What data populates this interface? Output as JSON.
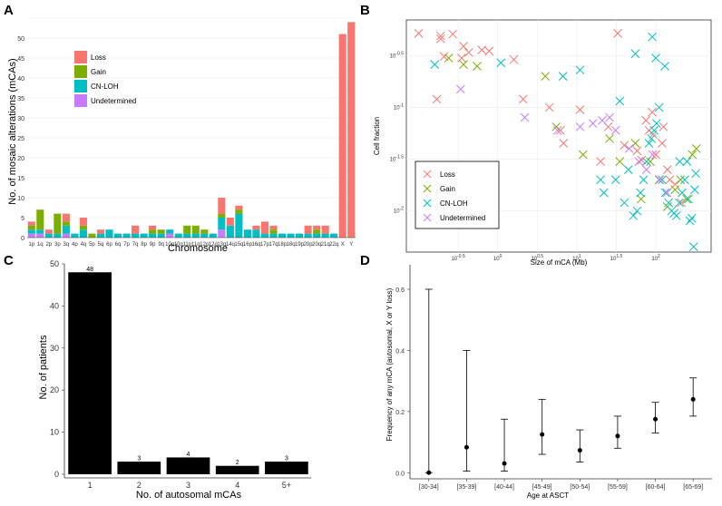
{
  "panels": {
    "A": "A",
    "B": "B",
    "C": "C",
    "D": "D"
  },
  "colors": {
    "loss": "#F8766D",
    "gain": "#7CAE00",
    "cnloh": "#00BFC4",
    "undetermined": "#C77CFF"
  },
  "chart_data": [
    {
      "id": "A",
      "type": "bar",
      "stacked": true,
      "title": "",
      "xlabel": "Chromosome",
      "ylabel": "No. of mosaic alterations (mCAs)",
      "ylim": [
        0,
        55
      ],
      "yticks": [
        "0",
        "5",
        "10",
        "15",
        "20",
        "25",
        "30",
        "35",
        "40",
        "45",
        "50"
      ],
      "categories": [
        "1p",
        "1q",
        "2p",
        "3p",
        "3q",
        "4p",
        "4q",
        "5p",
        "5q",
        "6p",
        "6q",
        "7p",
        "7q",
        "8p",
        "9p",
        "9q",
        "10p",
        "10q",
        "11p",
        "11q",
        "12p",
        "12q",
        "13q",
        "14q",
        "15q",
        "16p",
        "16q",
        "17p",
        "17q",
        "18p",
        "18q",
        "19p",
        "20p",
        "20q",
        "21q",
        "22q",
        "X",
        "Y"
      ],
      "legend": {
        "placement": "top-left",
        "entries": [
          "Loss",
          "Gain",
          "CN-LOH",
          "Undetermined"
        ]
      },
      "series": [
        {
          "name": "Undetermined",
          "color": "#C77CFF",
          "values": [
            1,
            1,
            0,
            0,
            1,
            0,
            0,
            0,
            0,
            0,
            0,
            0,
            0,
            0,
            0,
            0,
            1,
            0,
            0,
            0,
            0,
            0,
            2,
            0,
            0,
            0,
            0,
            0,
            0,
            0,
            0,
            0,
            0,
            0,
            0,
            0,
            0,
            0
          ]
        },
        {
          "name": "CN-LOH",
          "color": "#00BFC4",
          "values": [
            1,
            1,
            1,
            1,
            2,
            1,
            2,
            0,
            1,
            2,
            1,
            1,
            1,
            1,
            1,
            1,
            1,
            1,
            1,
            1,
            1,
            1,
            3,
            3,
            6,
            2,
            2,
            1,
            1,
            1,
            1,
            1,
            1,
            1,
            1,
            1,
            0,
            0
          ]
        },
        {
          "name": "Gain",
          "color": "#7CAE00",
          "values": [
            1,
            5,
            0,
            5,
            1,
            0,
            1,
            1,
            0,
            0,
            0,
            0,
            0,
            0,
            1,
            1,
            0,
            0,
            2,
            2,
            1,
            0,
            1,
            0,
            1,
            0,
            0,
            0,
            1,
            0,
            0,
            0,
            0,
            1,
            0,
            0,
            0,
            0
          ]
        },
        {
          "name": "Loss",
          "color": "#F8766D",
          "values": [
            1,
            0,
            1,
            0,
            2,
            0,
            2,
            0,
            1,
            0,
            0,
            0,
            2,
            0,
            1,
            0,
            0,
            0,
            0,
            0,
            0,
            0,
            4,
            2,
            1,
            0,
            1,
            3,
            1,
            0,
            0,
            0,
            2,
            1,
            2,
            0,
            51,
            54
          ]
        }
      ]
    },
    {
      "id": "B",
      "type": "scatter",
      "title": "",
      "xlabel": "Size of mCA (Mb)",
      "ylabel": "Cell fraction",
      "xscale": "log10",
      "yscale": "log10",
      "xlim": [
        0.07,
        500
      ],
      "ylim": [
        0.004,
        0.7
      ],
      "xticks": [
        "10^-0.5",
        "10^0",
        "10^0.5",
        "10^1",
        "10^1.5",
        "10^2"
      ],
      "yticks": [
        "10^-0.5",
        "10^-1",
        "10^-1.5",
        "10^-2"
      ],
      "legend": {
        "placement": "bottom-left",
        "entries": [
          "Loss",
          "Gain",
          "CN-LOH",
          "Undetermined"
        ]
      },
      "series": [
        {
          "name": "Loss",
          "color": "#F8766D",
          "points": [
            [
              0.1,
              0.52
            ],
            [
              0.19,
              0.49
            ],
            [
              0.19,
              0.46
            ],
            [
              0.27,
              0.51
            ],
            [
              0.37,
              0.39
            ],
            [
              0.43,
              0.34
            ],
            [
              0.63,
              0.36
            ],
            [
              0.78,
              0.35
            ],
            [
              0.21,
              0.31
            ],
            [
              0.35,
              0.3
            ],
            [
              0.17,
              0.12
            ],
            [
              1.6,
              0.29
            ],
            [
              2.1,
              0.12
            ],
            [
              4.5,
              0.1
            ],
            [
              6.2,
              0.06
            ],
            [
              6.8,
              0.045
            ],
            [
              11,
              0.095
            ],
            [
              20,
              0.03
            ],
            [
              25,
              0.065
            ],
            [
              33,
              0.52
            ],
            [
              40,
              0.043
            ],
            [
              58,
              0.038
            ],
            [
              66,
              0.031
            ],
            [
              82,
              0.06
            ],
            [
              92,
              0.055
            ],
            [
              100,
              0.035
            ],
            [
              120,
              0.045
            ],
            [
              140,
              0.025
            ],
            [
              150,
              0.02
            ],
            [
              175,
              0.018
            ],
            [
              210,
              0.012
            ],
            [
              90,
              0.09
            ],
            [
              125,
              0.065
            ],
            [
              75,
              0.075
            ]
          ]
        },
        {
          "name": "Gain",
          "color": "#7CAE00",
          "points": [
            [
              0.24,
              0.3
            ],
            [
              0.37,
              0.26
            ],
            [
              0.55,
              0.25
            ],
            [
              4,
              0.2
            ],
            [
              5.5,
              0.065
            ],
            [
              12,
              0.035
            ],
            [
              26,
              0.05
            ],
            [
              35,
              0.03
            ],
            [
              55,
              0.045
            ],
            [
              65,
              0.013
            ],
            [
              85,
              0.03
            ],
            [
              110,
              0.02
            ],
            [
              140,
              0.011
            ],
            [
              175,
              0.016
            ],
            [
              205,
              0.02
            ],
            [
              245,
              0.013
            ],
            [
              290,
              0.035
            ],
            [
              325,
              0.04
            ]
          ]
        },
        {
          "name": "CN-LOH",
          "color": "#00BFC4",
          "points": [
            [
              0.16,
              0.26
            ],
            [
              1.1,
              0.27
            ],
            [
              6.7,
              0.2
            ],
            [
              11,
              0.23
            ],
            [
              20,
              0.02
            ],
            [
              22,
              0.015
            ],
            [
              31,
              0.02
            ],
            [
              40,
              0.012
            ],
            [
              45,
              0.025
            ],
            [
              52,
              0.009
            ],
            [
              58,
              0.01
            ],
            [
              64,
              0.015
            ],
            [
              70,
              0.02
            ],
            [
              76,
              0.03
            ],
            [
              82,
              0.045
            ],
            [
              88,
              0.05
            ],
            [
              95,
              0.06
            ],
            [
              102,
              0.07
            ],
            [
              110,
              0.1
            ],
            [
              120,
              0.02
            ],
            [
              132,
              0.015
            ],
            [
              145,
              0.012
            ],
            [
              158,
              0.01
            ],
            [
              170,
              0.0095
            ],
            [
              182,
              0.009
            ],
            [
              198,
              0.012
            ],
            [
              215,
              0.015
            ],
            [
              232,
              0.02
            ],
            [
              248,
              0.03
            ],
            [
              258,
              0.013
            ],
            [
              270,
              0.008
            ],
            [
              285,
              0.0085
            ],
            [
              300,
              0.0045
            ],
            [
              310,
              0.016
            ],
            [
              320,
              0.023
            ],
            [
              200,
              0.03
            ],
            [
              35,
              0.115
            ],
            [
              55,
              0.33
            ],
            [
              90,
              0.48
            ],
            [
              100,
              0.3
            ],
            [
              130,
              0.25
            ]
          ]
        },
        {
          "name": "Undetermined",
          "color": "#C77CFF",
          "points": [
            [
              0.34,
              0.15
            ],
            [
              2.2,
              0.08
            ],
            [
              5.7,
              0.06
            ],
            [
              11,
              0.065
            ],
            [
              16,
              0.07
            ],
            [
              21,
              0.075
            ],
            [
              26,
              0.08
            ],
            [
              31,
              0.06
            ],
            [
              46,
              0.04
            ],
            [
              61,
              0.03
            ],
            [
              76,
              0.025
            ],
            [
              91,
              0.035
            ],
            [
              112,
              0.02
            ],
            [
              139,
              0.015
            ]
          ]
        }
      ]
    },
    {
      "id": "C",
      "type": "bar",
      "title": "",
      "xlabel": "No. of autosomal mCAs",
      "ylabel": "No. of patients",
      "categories": [
        "1",
        "2",
        "3",
        "4",
        "5+"
      ],
      "values": [
        48,
        3,
        4,
        2,
        3
      ],
      "labels": [
        "48",
        "3",
        "4",
        "2",
        "3"
      ],
      "ylim": [
        0,
        50
      ],
      "yticks": [
        "0",
        "10",
        "20",
        "30",
        "40",
        "50"
      ]
    },
    {
      "id": "D",
      "type": "errorbar",
      "title": "",
      "xlabel": "Age at ASCT",
      "ylabel": "Frequency of any mCA (autosomal, X or Y loss)",
      "categories": [
        "[30-34]",
        "[35-39]",
        "[40-44]",
        "[45-49]",
        "[50-54]",
        "[55-59]",
        "[60-64]",
        "[65-69]"
      ],
      "estimate": [
        0.0,
        0.083,
        0.03,
        0.125,
        0.073,
        0.12,
        0.175,
        0.24
      ],
      "lower": [
        0.0,
        0.005,
        0.005,
        0.06,
        0.035,
        0.08,
        0.13,
        0.185
      ],
      "upper": [
        0.6,
        0.4,
        0.175,
        0.24,
        0.14,
        0.185,
        0.23,
        0.31
      ],
      "ylim": [
        -0.02,
        0.68
      ],
      "yticks": [
        "0.0",
        "0.2",
        "0.4",
        "0.6"
      ]
    }
  ]
}
